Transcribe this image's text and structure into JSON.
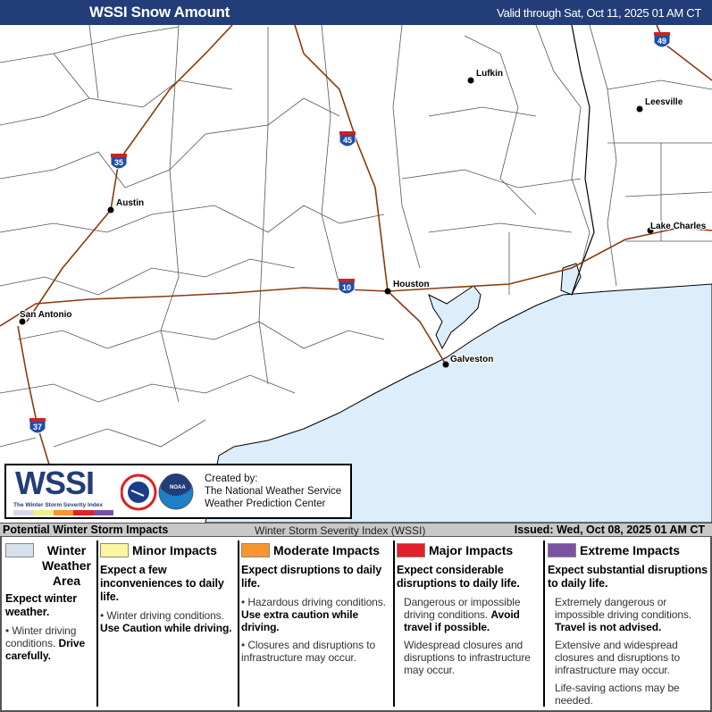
{
  "header": {
    "title": "WSSI Snow Amount",
    "valid": "Valid through Sat, Oct 11, 2025 01 AM CT"
  },
  "map": {
    "cities": [
      "Lufkin",
      "Leesville",
      "Austin",
      "Lake Charles",
      "Houston",
      "San Antonio",
      "Galveston"
    ],
    "shields": [
      "35",
      "45",
      "10",
      "37",
      "49"
    ],
    "water_color": "#dcedfb",
    "road_color": "#8b3a0f"
  },
  "logo": {
    "wssi": "WSSI",
    "subtitle": "The Winter Storm Severity Index",
    "created": [
      "Created by:",
      "The National Weather Service",
      "Weather Prediction Center"
    ],
    "nws": "NATIONAL WEATHER SERVICE",
    "noaa": "NOAA"
  },
  "impacts_bar": {
    "left": "Potential Winter Storm Impacts",
    "center": "Winter Storm Severity Index (WSSI)",
    "issued": "Issued: Wed, Oct 08, 2025 01 AM CT"
  },
  "legend": [
    {
      "title": "Winter Weather Area",
      "color": "#d6e0ea",
      "desc": "Expect winter weather.",
      "items": [
        {
          "text": "Winter driving conditions. ",
          "bold": "Drive carefully."
        }
      ]
    },
    {
      "title": "Minor Impacts",
      "color": "#fbf5a0",
      "desc": "Expect a few inconveniences to daily life.",
      "items": [
        {
          "text": "Winter driving conditions. ",
          "bold": "Use Caution while driving."
        }
      ]
    },
    {
      "title": "Moderate Impacts",
      "color": "#f7962e",
      "desc": "Expect disruptions to daily life.",
      "items": [
        {
          "text": "Hazardous driving conditions. ",
          "bold": "Use extra caution while driving."
        },
        {
          "text": "Closures and disruptions to infrastructure may occur.",
          "bold": ""
        }
      ]
    },
    {
      "title": "Major Impacts",
      "color": "#e3212b",
      "desc": "Expect considerable disruptions to daily life.",
      "items": [
        {
          "text": "Dangerous or impossible driving conditions. ",
          "bold": "Avoid travel if possible."
        },
        {
          "text": "Widespread closures and disruptions to infrastructure may occur.",
          "bold": ""
        }
      ]
    },
    {
      "title": "Extreme Impacts",
      "color": "#7b52a3",
      "desc": "Expect substantial disruptions to daily life.",
      "items": [
        {
          "text": "Extremely dangerous or impossible driving conditions. ",
          "bold": "Travel is not advised."
        },
        {
          "text": "Extensive and widespread closures and disruptions to infrastructure may occur.",
          "bold": ""
        },
        {
          "text": "Life-saving actions may be needed.",
          "bold": ""
        }
      ]
    }
  ]
}
